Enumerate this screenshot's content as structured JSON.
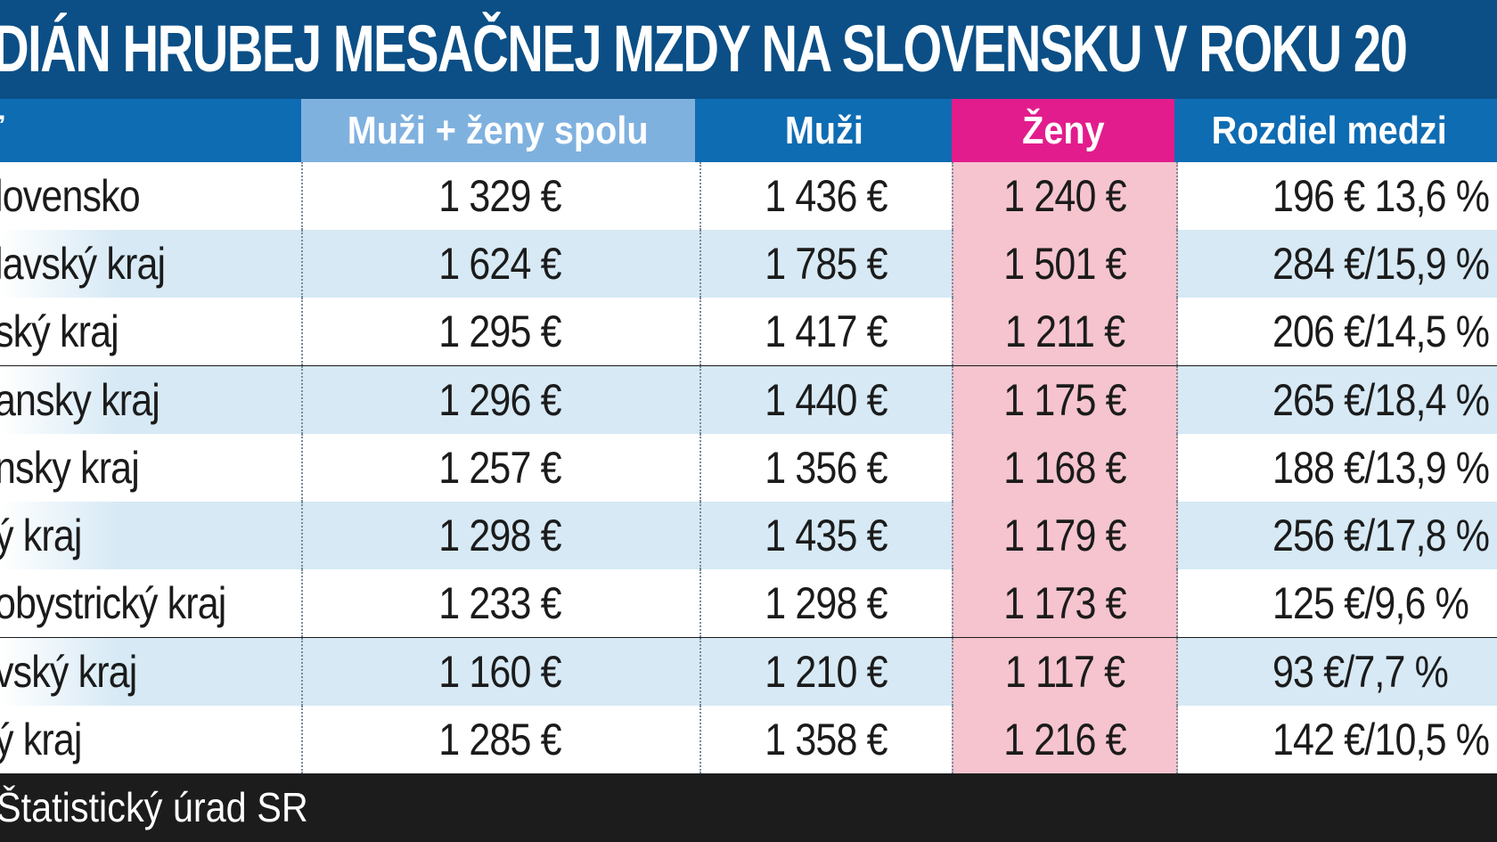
{
  "title": "DIÁN HRUBEJ MESAČNEJ MZDY NA SLOVENSKU V ROKU 20",
  "header": {
    "name": "ť",
    "total": "Muži + ženy spolu",
    "men": "Muži",
    "women": "Ženy",
    "diff": "Rozdiel medzi"
  },
  "colors": {
    "title_bg": "#0b4f86",
    "header_bg": "#0e6cb3",
    "header_total_bg": "#7fb1df",
    "header_women_bg": "#e21c8c",
    "row_light": "#ffffff",
    "row_tint": "#d6e9f5",
    "women_cell_bg": "#f5c4ce",
    "source_bg": "#1c1c1c"
  },
  "source": "Štatistický úrad SR",
  "chart_data": {
    "type": "table",
    "title": "DIÁN HRUBEJ MESAČNEJ MZDY NA SLOVENSKU V ROKU 20",
    "columns": [
      "ť",
      "Muži + ženy spolu",
      "Muži",
      "Ženy",
      "Rozdiel medzi"
    ],
    "rows": [
      {
        "name": "lovensko",
        "total": "1 329 €",
        "men": "1 436 €",
        "women": "1 240 €",
        "diff": "196 € 13,6 %"
      },
      {
        "name": "lavský kraj",
        "total": "1 624 €",
        "men": "1 785 €",
        "women": "1 501 €",
        "diff": "284 €/15,9 %"
      },
      {
        "name": "ský kraj",
        "total": "1 295 €",
        "men": "1 417 €",
        "women": "1 211 €",
        "diff": "206 €/14,5 %"
      },
      {
        "name": "ansky kraj",
        "total": "1 296 €",
        "men": "1 440 €",
        "women": "1 175 €",
        "diff": "265 €/18,4 %"
      },
      {
        "name": "nsky kraj",
        "total": "1 257 €",
        "men": "1 356 €",
        "women": "1 168 €",
        "diff": "188 €/13,9 %"
      },
      {
        "name": "ý kraj",
        "total": "1 298 €",
        "men": "1 435 €",
        "women": "1 179 €",
        "diff": "256 €/17,8 %"
      },
      {
        "name": "obystrický kraj",
        "total": "1 233 €",
        "men": "1 298 €",
        "women": "1 173 €",
        "diff": "125 €/9,6 %"
      },
      {
        "name": "vský kraj",
        "total": "1 160 €",
        "men": "1 210 €",
        "women": "1 117 €",
        "diff": "93 €/7,7 %"
      },
      {
        "name": "ý kraj",
        "total": "1 285 €",
        "men": "1 358 €",
        "women": "1 216 €",
        "diff": "142 €/10,5 %"
      }
    ],
    "values": {
      "total": [
        1329,
        1624,
        1295,
        1296,
        1257,
        1298,
        1233,
        1160,
        1285
      ],
      "men": [
        1436,
        1785,
        1417,
        1440,
        1356,
        1435,
        1298,
        1210,
        1358
      ],
      "women": [
        1240,
        1501,
        1211,
        1175,
        1168,
        1179,
        1173,
        1117,
        1216
      ],
      "diff_eur": [
        196,
        284,
        206,
        265,
        188,
        256,
        125,
        93,
        142
      ],
      "diff_pct": [
        13.6,
        15.9,
        14.5,
        18.4,
        13.9,
        17.8,
        9.6,
        7.7,
        10.5
      ]
    }
  }
}
